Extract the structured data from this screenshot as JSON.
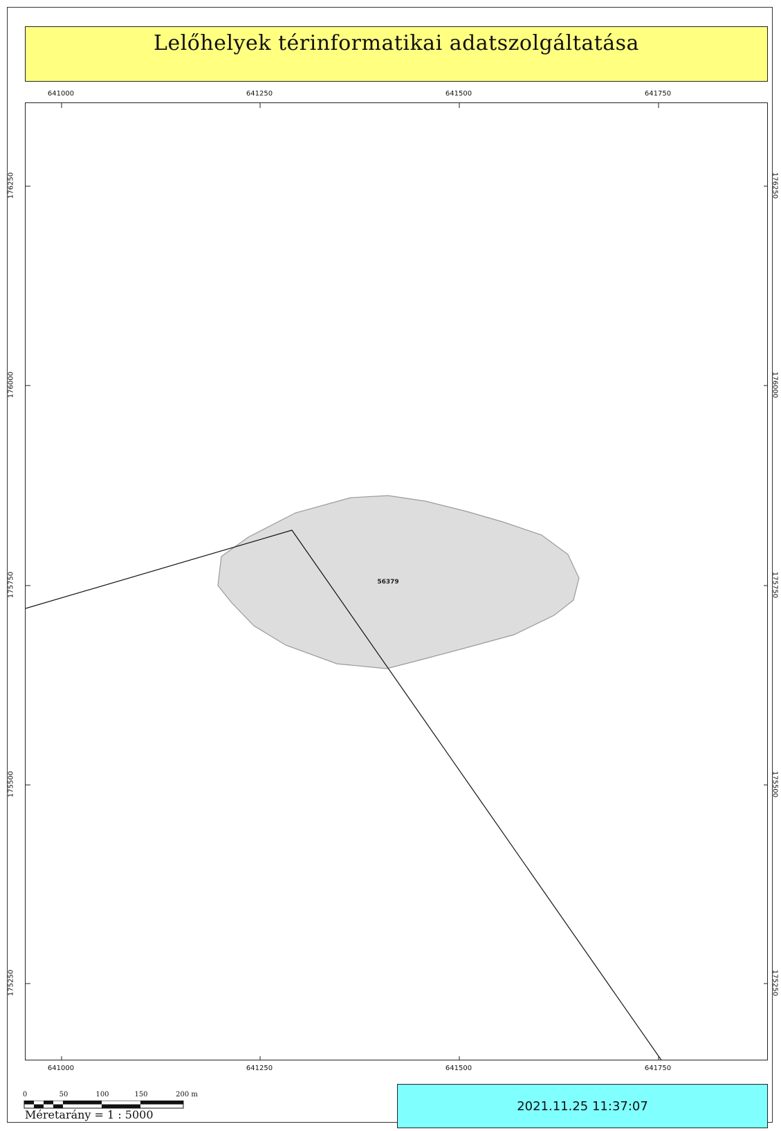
{
  "title": "Lelőhelyek térinformatikai adatszolgáltatása",
  "map": {
    "x_ticks": [
      "641000",
      "641250",
      "641500",
      "641750"
    ],
    "y_ticks": [
      "176250",
      "176000",
      "175750",
      "175500",
      "175250"
    ],
    "site_label": "56379",
    "colors": {
      "site_fill": "#dddddd",
      "site_stroke": "#9a9a9a",
      "line": "#111111"
    }
  },
  "scalebar": {
    "ticks": [
      "0",
      "50",
      "100",
      "150",
      "200 m"
    ],
    "scale_text": "Méretarány = 1 : 5000"
  },
  "timestamp": "2021.11.25 11:37:07",
  "colors": {
    "title_bg": "#ffff80",
    "timestamp_bg": "#80ffff"
  }
}
